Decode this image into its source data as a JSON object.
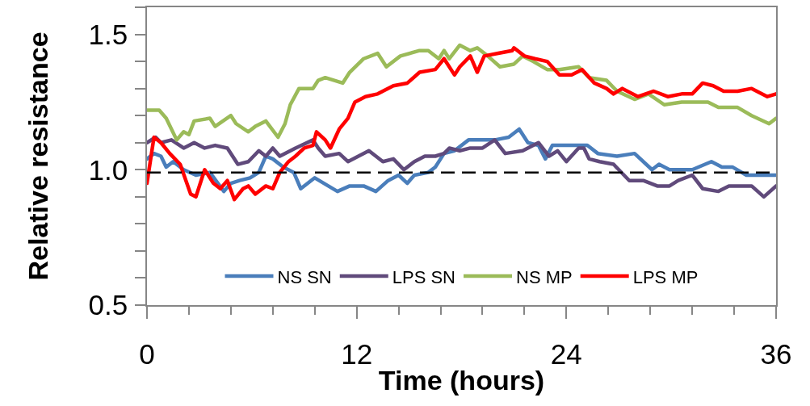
{
  "chart_data": {
    "type": "line",
    "xlabel": "Time (hours)",
    "ylabel": "Relative resistance",
    "xlim": [
      0,
      36
    ],
    "ylim": [
      0.5,
      1.6
    ],
    "xticks": [
      0,
      {
        "value": 2.4,
        "label": null
      },
      {
        "value": 4.8,
        "label": null
      },
      {
        "value": 7.2,
        "label": null
      },
      {
        "value": 9.6,
        "label": null
      },
      12,
      {
        "value": 14.4,
        "label": null
      },
      {
        "value": 16.8,
        "label": null
      },
      {
        "value": 19.2,
        "label": null
      },
      {
        "value": 21.6,
        "label": null
      },
      24,
      {
        "value": 26.4,
        "label": null
      },
      {
        "value": 28.8,
        "label": null
      },
      {
        "value": 31.2,
        "label": null
      },
      {
        "value": 33.6,
        "label": null
      },
      36
    ],
    "yticks": [
      0.5,
      {
        "value": 0.6,
        "label": null
      },
      {
        "value": 0.7,
        "label": null
      },
      {
        "value": 0.8,
        "label": null
      },
      {
        "value": 0.9,
        "label": null
      },
      {
        "value": 1.0,
        "label": "1.0"
      },
      {
        "value": 1.1,
        "label": null
      },
      {
        "value": 1.2,
        "label": null
      },
      {
        "value": 1.3,
        "label": null
      },
      {
        "value": 1.4,
        "label": null
      },
      1.5,
      {
        "value": 1.6,
        "label": null
      }
    ],
    "legend": "bottom",
    "line_style": "solid",
    "ref_lines": [
      {
        "axis": "y",
        "value": 0.99,
        "color": "#000000",
        "line_style": "dashed"
      }
    ],
    "series": [
      {
        "name": "NS SN",
        "color": "#4a7ebb",
        "x": [
          0,
          0.4,
          0.8,
          1.1,
          1.5,
          2.1,
          2.8,
          3.6,
          4.4,
          4.8,
          5.3,
          5.9,
          6.4,
          6.8,
          7.2,
          7.8,
          8.4,
          8.8,
          9.6,
          10.9,
          11.6,
          12.4,
          13.1,
          13.8,
          14.4,
          14.9,
          15.3,
          16.1,
          16.5,
          17.0,
          17.6,
          18.4,
          19.2,
          19.9,
          20.7,
          21.3,
          21.8,
          22.4,
          22.8,
          23.2,
          24.1,
          25.2,
          25.8,
          26.9,
          27.9,
          28.9,
          29.3,
          29.9,
          31.2,
          32.3,
          32.9,
          33.5,
          34.3,
          35.2,
          36
        ],
        "values": [
          1.04,
          1.06,
          1.05,
          1.01,
          1.03,
          1.0,
          0.98,
          0.99,
          0.92,
          0.95,
          0.96,
          0.97,
          0.99,
          1.05,
          1.04,
          1.01,
          0.99,
          0.93,
          0.97,
          0.92,
          0.94,
          0.94,
          0.92,
          0.96,
          0.98,
          0.95,
          0.98,
          0.99,
          1.01,
          1.06,
          1.07,
          1.11,
          1.11,
          1.11,
          1.12,
          1.15,
          1.1,
          1.09,
          1.04,
          1.09,
          1.09,
          1.09,
          1.06,
          1.05,
          1.06,
          1.0,
          1.02,
          1.0,
          1.0,
          1.03,
          1.01,
          1.01,
          0.98,
          0.98,
          0.98
        ]
      },
      {
        "name": "LPS SN",
        "color": "#604a7b",
        "x": [
          0,
          0.5,
          0.8,
          1.4,
          2.1,
          2.7,
          3.3,
          3.9,
          4.6,
          5.2,
          5.8,
          6.4,
          6.8,
          7.2,
          7.6,
          8.5,
          9.5,
          9.8,
          10.2,
          11.0,
          11.5,
          12.1,
          12.7,
          13.5,
          14.1,
          14.7,
          15.3,
          15.9,
          16.5,
          17.0,
          17.3,
          17.9,
          18.5,
          19.2,
          19.9,
          20.5,
          21.5,
          22.4,
          23.0,
          23.5,
          24.0,
          24.7,
          25.0,
          25.3,
          25.9,
          26.7,
          27.6,
          28.4,
          29.2,
          29.9,
          30.4,
          31.2,
          31.8,
          32.7,
          33.3,
          34.6,
          35.3,
          36
        ],
        "values": [
          1.1,
          1.12,
          1.1,
          1.11,
          1.08,
          1.1,
          1.08,
          1.09,
          1.08,
          1.02,
          1.03,
          1.07,
          1.05,
          1.08,
          1.05,
          1.08,
          1.11,
          1.08,
          1.05,
          1.06,
          1.03,
          1.05,
          1.07,
          1.03,
          1.04,
          1.0,
          1.03,
          1.05,
          1.05,
          1.06,
          1.08,
          1.07,
          1.08,
          1.08,
          1.11,
          1.06,
          1.07,
          1.1,
          1.05,
          1.07,
          1.03,
          1.08,
          1.08,
          1.04,
          1.03,
          1.02,
          0.96,
          0.96,
          0.94,
          0.94,
          0.96,
          0.98,
          0.93,
          0.92,
          0.94,
          0.94,
          0.9,
          0.94
        ]
      },
      {
        "name": "NS MP",
        "color": "#9bbb59",
        "x": [
          0,
          0.7,
          1.1,
          1.7,
          2.1,
          2.4,
          2.7,
          3.6,
          3.9,
          4.8,
          5.1,
          5.8,
          6.2,
          6.8,
          7.5,
          7.9,
          8.2,
          8.7,
          9.5,
          9.8,
          10.2,
          11.2,
          11.6,
          12.4,
          13.2,
          13.7,
          14.5,
          15.6,
          16.1,
          16.7,
          17.0,
          17.3,
          17.9,
          18.5,
          18.9,
          19.5,
          20.2,
          21.0,
          21.5,
          22.1,
          22.9,
          23.6,
          24.7,
          25.3,
          26.3,
          26.9,
          27.9,
          28.7,
          29.6,
          30.6,
          31.5,
          32.1,
          32.7,
          33.8,
          34.6,
          35.6,
          36
        ],
        "values": [
          1.22,
          1.22,
          1.19,
          1.11,
          1.14,
          1.13,
          1.18,
          1.19,
          1.16,
          1.2,
          1.17,
          1.14,
          1.16,
          1.18,
          1.12,
          1.17,
          1.24,
          1.3,
          1.3,
          1.33,
          1.34,
          1.32,
          1.36,
          1.41,
          1.43,
          1.38,
          1.42,
          1.44,
          1.44,
          1.41,
          1.44,
          1.41,
          1.46,
          1.44,
          1.45,
          1.42,
          1.38,
          1.39,
          1.42,
          1.4,
          1.37,
          1.37,
          1.38,
          1.34,
          1.33,
          1.29,
          1.26,
          1.28,
          1.24,
          1.25,
          1.25,
          1.25,
          1.23,
          1.23,
          1.2,
          1.17,
          1.19
        ]
      },
      {
        "name": "LPS MP",
        "color": "#ff0000",
        "x": [
          0,
          0.4,
          0.8,
          1.3,
          1.9,
          2.5,
          2.8,
          3.3,
          3.8,
          4.2,
          4.6,
          5.0,
          5.5,
          5.8,
          6.2,
          6.8,
          7.2,
          7.6,
          8.1,
          8.5,
          9.0,
          9.5,
          9.7,
          10.2,
          10.5,
          11.0,
          11.5,
          11.9,
          12.5,
          13.2,
          14.1,
          14.9,
          15.6,
          16.5,
          17.0,
          17.6,
          17.9,
          18.5,
          18.9,
          19.3,
          20.1,
          20.9,
          21.0,
          21.6,
          22.2,
          22.9,
          23.6,
          24.3,
          24.9,
          25.6,
          26.3,
          26.7,
          27.2,
          28.1,
          29.0,
          29.8,
          30.6,
          31.2,
          31.8,
          32.4,
          33.0,
          33.8,
          34.6,
          35.5,
          36
        ],
        "values": [
          0.95,
          1.12,
          1.1,
          1.06,
          1.02,
          0.91,
          0.9,
          1.0,
          0.95,
          0.93,
          0.96,
          0.89,
          0.93,
          0.94,
          0.91,
          0.94,
          0.93,
          0.99,
          1.03,
          1.05,
          1.08,
          1.09,
          1.14,
          1.11,
          1.08,
          1.15,
          1.19,
          1.25,
          1.27,
          1.28,
          1.31,
          1.32,
          1.36,
          1.37,
          1.41,
          1.35,
          1.38,
          1.42,
          1.36,
          1.42,
          1.43,
          1.44,
          1.45,
          1.42,
          1.41,
          1.4,
          1.35,
          1.35,
          1.37,
          1.32,
          1.3,
          1.28,
          1.3,
          1.27,
          1.29,
          1.27,
          1.28,
          1.28,
          1.32,
          1.31,
          1.29,
          1.29,
          1.3,
          1.27,
          1.28
        ]
      }
    ]
  }
}
